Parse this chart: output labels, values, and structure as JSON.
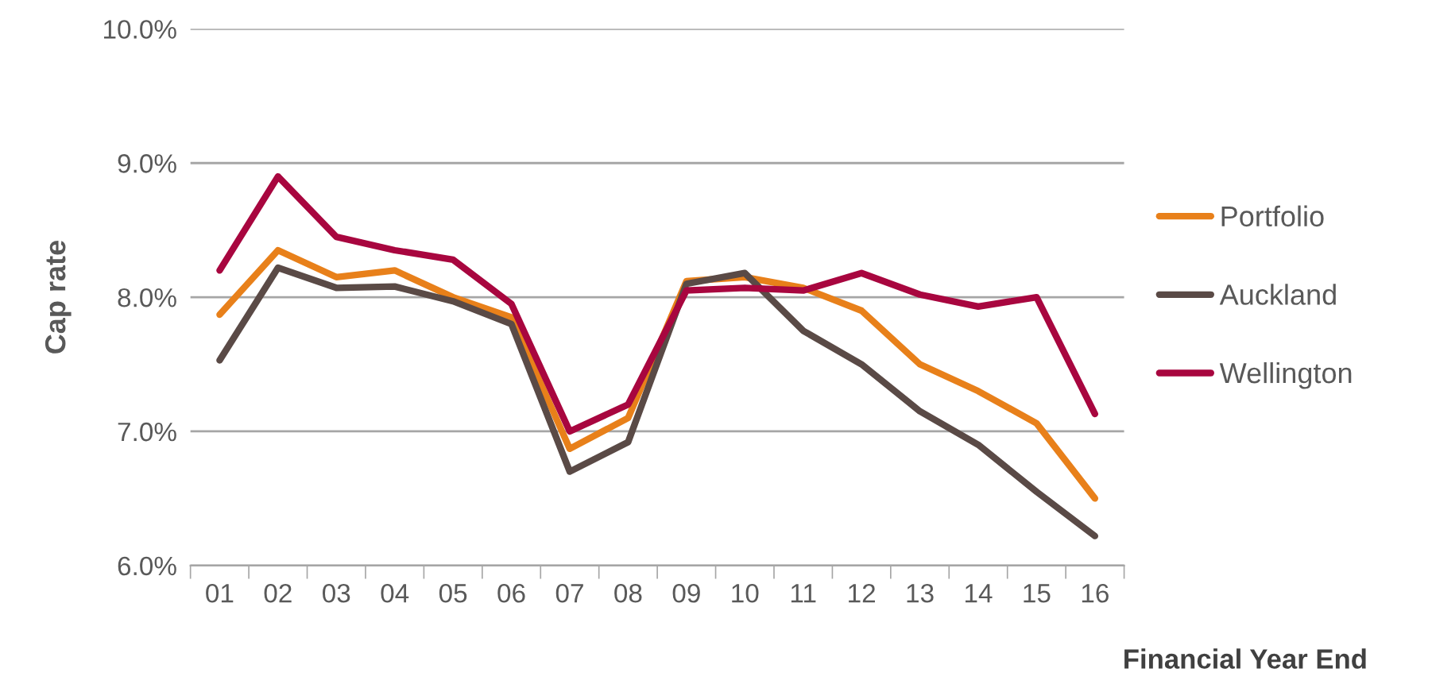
{
  "chart_data": {
    "type": "line",
    "xlabel": "Financial Year End",
    "ylabel": "Cap rate",
    "categories": [
      "01",
      "02",
      "03",
      "04",
      "05",
      "06",
      "07",
      "08",
      "09",
      "10",
      "11",
      "12",
      "13",
      "14",
      "15",
      "16"
    ],
    "series": [
      {
        "name": "Portfolio",
        "color": "#e8801a",
        "values": [
          7.87,
          8.35,
          8.15,
          8.2,
          8.0,
          7.85,
          6.87,
          7.1,
          8.12,
          8.15,
          8.07,
          7.9,
          7.5,
          7.3,
          7.06,
          6.5
        ]
      },
      {
        "name": "Auckland",
        "color": "#5a4a46",
        "values": [
          7.53,
          8.22,
          8.07,
          8.08,
          7.97,
          7.8,
          6.7,
          6.92,
          8.1,
          8.18,
          7.75,
          7.5,
          7.15,
          6.9,
          6.55,
          6.22
        ]
      },
      {
        "name": "Wellington",
        "color": "#a8063f",
        "values": [
          8.2,
          8.9,
          8.45,
          8.35,
          8.28,
          7.95,
          7.0,
          7.2,
          8.05,
          8.07,
          8.05,
          8.18,
          8.02,
          7.93,
          8.0,
          7.13
        ]
      }
    ],
    "ylim": [
      6,
      10
    ],
    "yticks": [
      {
        "value": 6,
        "label": "6.0%"
      },
      {
        "value": 7,
        "label": "7.0%"
      },
      {
        "value": 8,
        "label": "8.0%"
      },
      {
        "value": 9,
        "label": "9.0%"
      },
      {
        "value": 10,
        "label": "10.0%"
      }
    ],
    "grid": "y",
    "legend": "right",
    "marker": "none",
    "line_style": "solid"
  }
}
